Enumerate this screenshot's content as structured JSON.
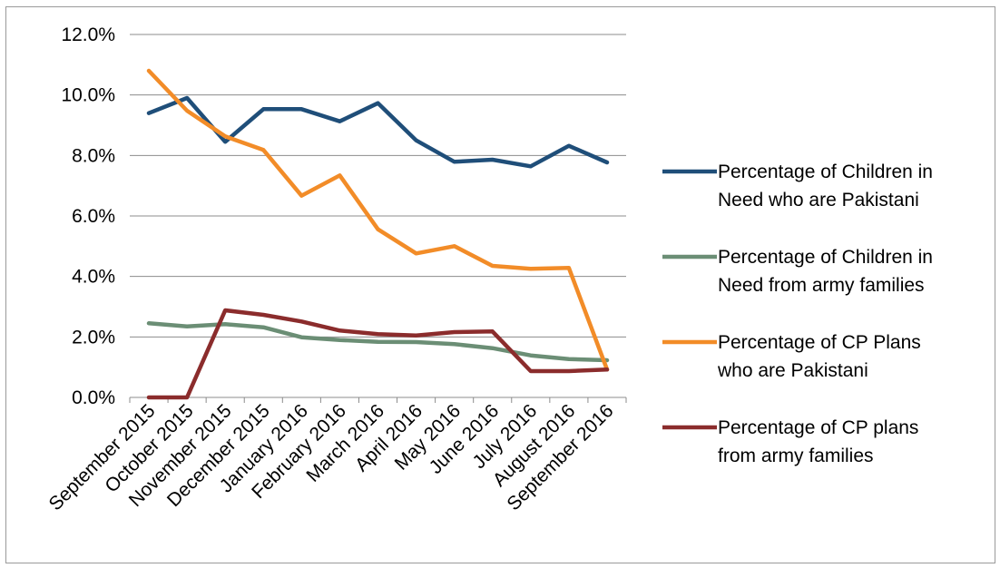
{
  "chart_data": {
    "type": "line",
    "title": "",
    "xlabel": "",
    "ylabel": "",
    "categories": [
      "September 2015",
      "October 2015",
      "November 2015",
      "December 2015",
      "January 2016",
      "February 2016",
      "March 2016",
      "April 2016",
      "May 2016",
      "June 2016",
      "July 2016",
      "August 2016",
      "September 2016"
    ],
    "ylim": [
      0,
      0.12
    ],
    "yticks": [
      "0.0%",
      "2.0%",
      "4.0%",
      "6.0%",
      "8.0%",
      "10.0%",
      "12.0%"
    ],
    "grid": true,
    "legend_position": "right",
    "series": [
      {
        "name": "Percentage of Children in Need who are Pakistani",
        "legend_lines": [
          "Percentage of Children in",
          "Need who are Pakistani"
        ],
        "color": "#1f4e79",
        "values": [
          0.094,
          0.099,
          0.0845,
          0.0953,
          0.0953,
          0.0913,
          0.0973,
          0.085,
          0.0779,
          0.0786,
          0.0764,
          0.0832,
          0.0777
        ]
      },
      {
        "name": "Percentage of Children in Need from army families",
        "legend_lines": [
          "Percentage of Children in",
          "Need from army families"
        ],
        "color": "#6b8e75",
        "values": [
          0.0245,
          0.0235,
          0.0242,
          0.0232,
          0.0199,
          0.019,
          0.0184,
          0.0183,
          0.0176,
          0.0163,
          0.0139,
          0.0127,
          0.0123
        ]
      },
      {
        "name": "Percentage of CP Plans who are Pakistani",
        "legend_lines": [
          "Percentage of CP Plans",
          "who are Pakistani"
        ],
        "color": "#f28c28",
        "values": [
          0.108,
          0.0948,
          0.0863,
          0.0818,
          0.0667,
          0.0734,
          0.0556,
          0.0476,
          0.05,
          0.0435,
          0.0425,
          0.0428,
          0.0092
        ]
      },
      {
        "name": "Percentage of CP plans from army families",
        "legend_lines": [
          "Percentage of CP plans",
          "from army families"
        ],
        "color": "#8b2c2c",
        "values": [
          0.0,
          0.0,
          0.0288,
          0.0273,
          0.0251,
          0.0221,
          0.0209,
          0.0205,
          0.0216,
          0.0218,
          0.0087,
          0.0087,
          0.0092
        ]
      }
    ]
  }
}
